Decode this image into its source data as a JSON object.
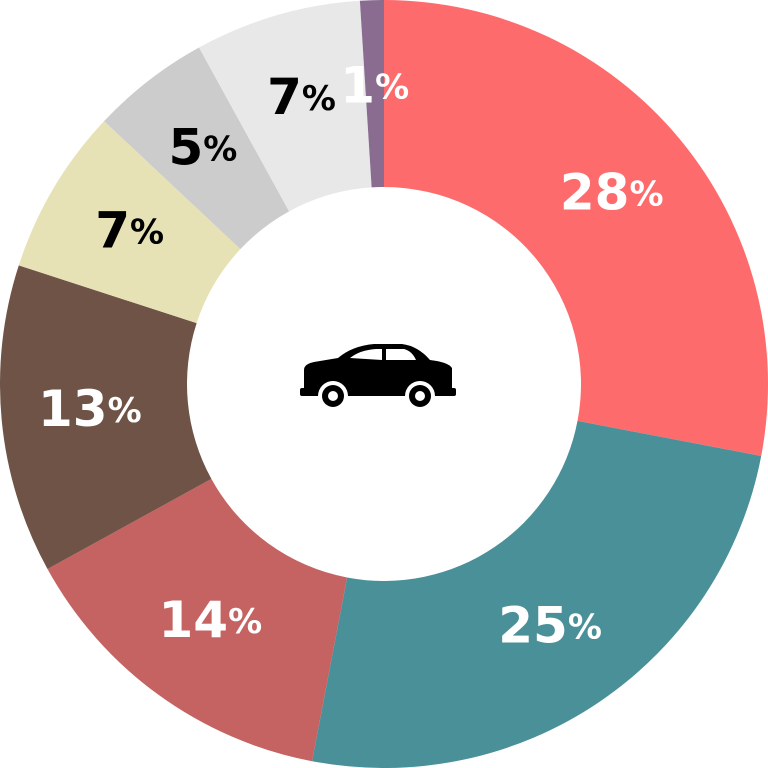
{
  "chart_data": {
    "type": "donut",
    "categories": [
      null,
      null,
      null,
      null,
      null,
      null,
      null,
      null
    ],
    "values": [
      28,
      25,
      14,
      13,
      7,
      5,
      7,
      1
    ],
    "value_labels": [
      "28%",
      "25%",
      "14%",
      "13%",
      "7%",
      "5%",
      "7%",
      "1%"
    ],
    "colors": [
      "#fe6b6c",
      "#4a9099",
      "#c46361",
      "#6e5346",
      "#e6e2b6",
      "#cccccc",
      "#e8e8e8",
      "#8a6c91"
    ],
    "label_colors": [
      "#ffffff",
      "#ffffff",
      "#ffffff",
      "#ffffff",
      "#000000",
      "#000000",
      "#000000",
      "#ffffff"
    ]
  }
}
